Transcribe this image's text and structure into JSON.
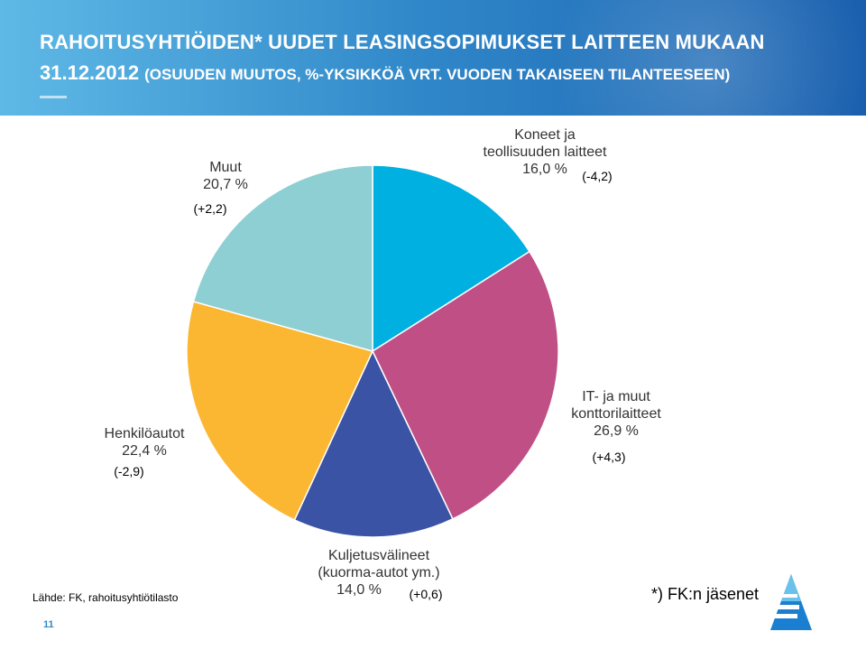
{
  "header": {
    "title_line1": "RAHOITUSYHTIÖIDEN* UUDET LEASINGSOPIMUKSET LAITTEEN MUKAAN",
    "title_date": "31.12.2012",
    "title_sub": "(OSUUDEN MUUTOS, %-YKSIKKÖÄ VRT. VUODEN TAKAISEEN TILANTEESEEN)"
  },
  "chart_data": {
    "type": "pie",
    "title": "RAHOITUSYHTIÖIDEN* UUDET LEASINGSOPIMUKSET LAITTEEN MUKAAN 31.12.2012",
    "slices": [
      {
        "label_lines": [
          "Koneet ja",
          "teollisuuden laitteet"
        ],
        "value": 16.0,
        "value_text": "16,0 %",
        "change": "(-4,2)",
        "color": "#00b0e0"
      },
      {
        "label_lines": [
          "IT-  ja muut",
          "konttorilaitteet"
        ],
        "value": 26.9,
        "value_text": "26,9 %",
        "change": "(+4,3)",
        "color": "#c04f86"
      },
      {
        "label_lines": [
          "Kuljetusvälineet",
          "(kuorma-autot ym.)"
        ],
        "value": 14.0,
        "value_text": "14,0 %",
        "change": "(+0,6)",
        "color": "#3a53a4"
      },
      {
        "label_lines": [
          "Henkilöautot"
        ],
        "value": 22.4,
        "value_text": "22,4 %",
        "change": "(-2,9)",
        "color": "#fbb632"
      },
      {
        "label_lines": [
          "Muut"
        ],
        "value": 20.7,
        "value_text": "20,7 %",
        "change": "(+2,2)",
        "color": "#8dcfd2"
      }
    ]
  },
  "footer": {
    "source": "Lähde: FK, rahoitusyhtiötilasto",
    "note": "*) FK:n jäsenet",
    "page_number": "11"
  },
  "colors": {
    "header_start": "#5fb9e6",
    "header_end": "#1a5fae"
  }
}
